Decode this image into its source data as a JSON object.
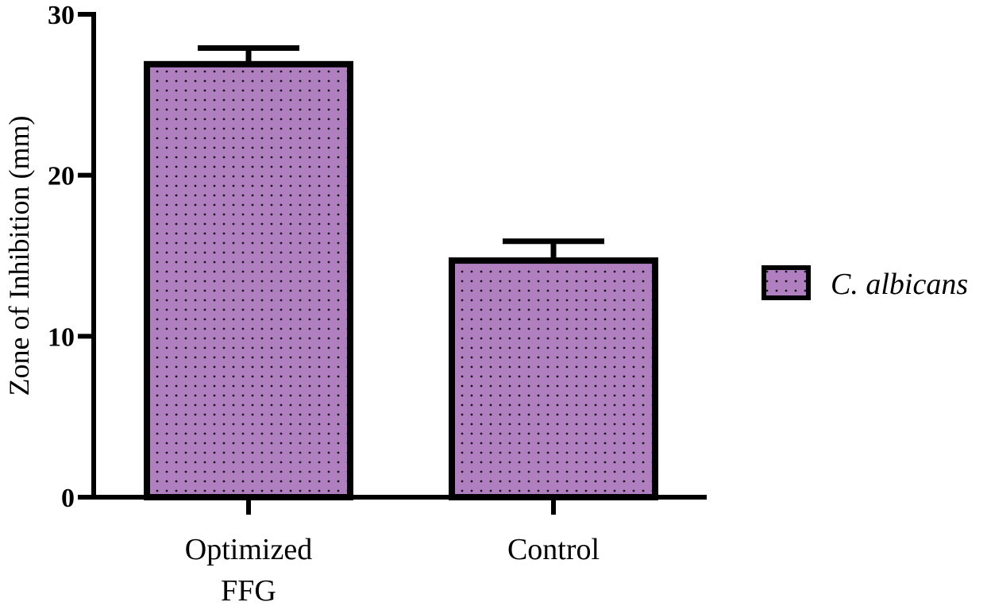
{
  "chart_data": {
    "type": "bar",
    "categories": [
      "Optimized\nFFG",
      "Control"
    ],
    "series": [
      {
        "name": "C. albicans",
        "values": [
          26.9,
          14.7
        ],
        "errors": [
          1.0,
          1.2
        ],
        "color": "#b07fc0"
      }
    ],
    "xlabel": "",
    "ylabel": "Zone of Inhibition (mm)",
    "ylim": [
      0,
      30
    ],
    "yticks": [
      0,
      10,
      20,
      30
    ],
    "grid": false,
    "legend": "right"
  }
}
